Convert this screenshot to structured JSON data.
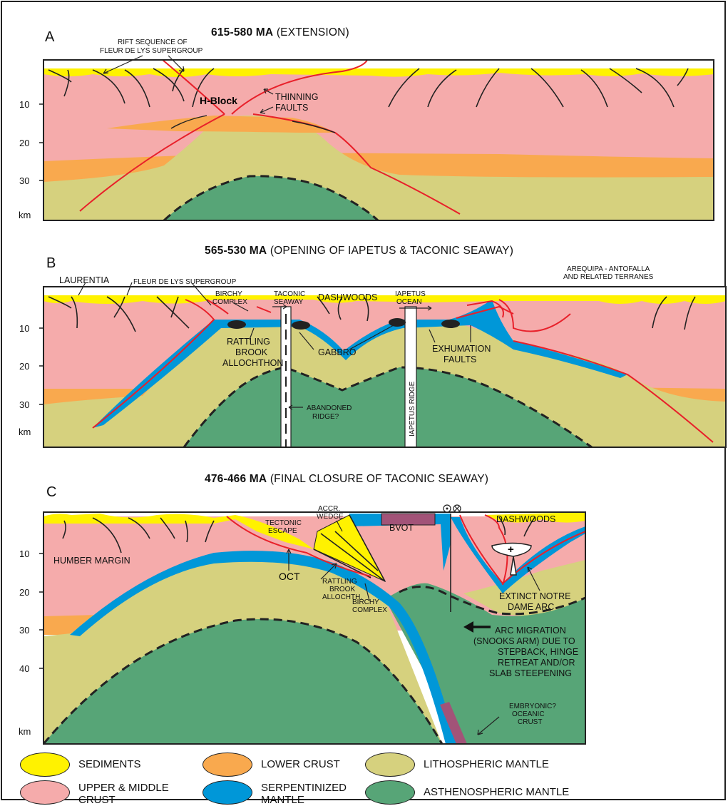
{
  "panels": [
    {
      "letter": "A",
      "age": "615-580 MA",
      "subtitle": "(EXTENSION)",
      "axis": {
        "ticks": [
          "10",
          "20",
          "30"
        ],
        "unit": "km"
      },
      "labels": {
        "rift": [
          "RIFT SEQUENCE OF",
          "FLEUR DE LYS SUPERGROUP"
        ],
        "hblock": "H-Block",
        "thinning": [
          "THINNING",
          "FAULTS"
        ]
      }
    },
    {
      "letter": "B",
      "age": "565-530 MA",
      "subtitle": "(OPENING OF IAPETUS & TACONIC SEAWAY)",
      "axis": {
        "ticks": [
          "10",
          "20",
          "30"
        ],
        "unit": "km"
      },
      "labels": {
        "laurentia": "LAURENTIA",
        "fleur": "FLEUR DE LYS SUPERGROUP",
        "birchy": [
          "BIRCHY",
          "COMPLEX"
        ],
        "taconic": [
          "TACONIC",
          "SEAWAY"
        ],
        "dashwoods": "DASHWOODS",
        "iapetus_ocean": [
          "IAPETUS",
          "OCEAN"
        ],
        "arequipa": [
          "AREQUIPA - ANTOFALLA",
          "AND RELATED TERRANES"
        ],
        "rattling": [
          "RATTLING",
          "BROOK",
          "ALLOCHTHON"
        ],
        "gabbro": "GABBRO",
        "exhumation": [
          "EXHUMATION",
          "FAULTS"
        ],
        "iapetus_ridge": "IAPETUS RIDGE",
        "abandoned": [
          "ABANDONED",
          "RIDGE?"
        ]
      }
    },
    {
      "letter": "C",
      "age": "476-466 MA",
      "subtitle": "(FINAL CLOSURE OF TACONIC SEAWAY)",
      "axis": {
        "ticks": [
          "10",
          "20",
          "30",
          "40"
        ],
        "unit": "km"
      },
      "labels": {
        "humber": "HUMBER MARGIN",
        "tectonic": [
          "TECTONIC",
          "ESCAPE"
        ],
        "accr": [
          "ACCR.",
          "WEDGE"
        ],
        "bvot": "BVOT",
        "dashwoods": "DASHWOODS",
        "oct": "OCT",
        "rattling": [
          "RATTLING",
          "BROOK",
          "ALLOCHTH."
        ],
        "birchy": [
          "BIRCHY",
          "COMPLEX"
        ],
        "notre": [
          "EXTINCT NOTRE",
          "DAME ARC"
        ],
        "migration": [
          "ARC MIGRATION",
          "(SNOOKS ARM) DUE TO",
          "STEPBACK, HINGE",
          "RETREAT AND/OR",
          "SLAB STEEPENING"
        ],
        "embryonic": [
          "EMBRYONIC?",
          "OCEANIC",
          "CRUST"
        ]
      }
    }
  ],
  "legend": [
    {
      "label": "SEDIMENTS",
      "color": "#fff200"
    },
    {
      "label": "LOWER CRUST",
      "color": "#f9a94e"
    },
    {
      "label": "LITHOSPHERIC MANTLE",
      "color": "#d6d17e"
    },
    {
      "label": "UPPER & MIDDLE CRUST",
      "color": "#f5abab"
    },
    {
      "label": "SERPENTINIZED MANTLE",
      "color": "#0097d8"
    },
    {
      "label": "ASTHENOSPHERIC MANTLE",
      "color": "#57a577"
    }
  ],
  "colors": {
    "sediments": "#fff200",
    "lower_crust": "#f9a94e",
    "litho": "#d6d17e",
    "upper": "#f5abab",
    "serp": "#0097d8",
    "astheno": "#57a577",
    "fault": "#e8202a",
    "bvot": "#a25378"
  }
}
